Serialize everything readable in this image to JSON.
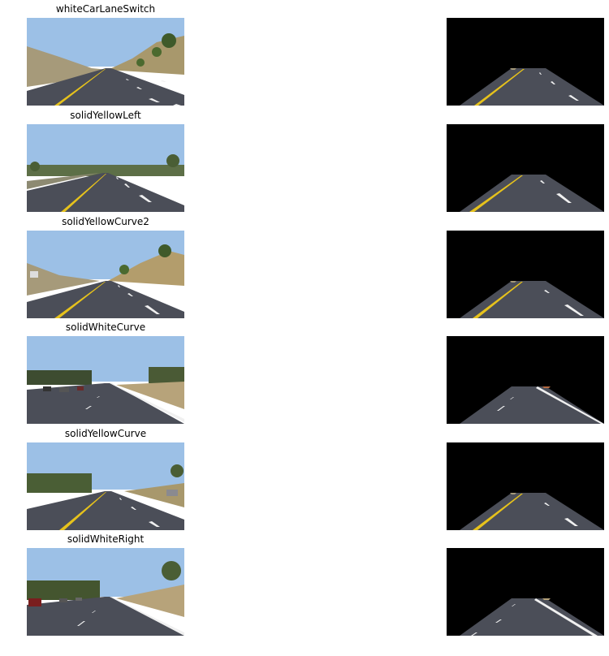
{
  "panels": [
    {
      "title": "whiteCarLaneSwitch",
      "yellow_line": "left",
      "white_dashes": "right",
      "scene": "grassy-hill-right"
    },
    {
      "title": "solidYellowLeft",
      "yellow_line": "left",
      "white_dashes": "right",
      "scene": "open-road-trees"
    },
    {
      "title": "solidYellowCurve2",
      "yellow_line": "left",
      "white_dashes": "right",
      "scene": "hills-both-sides"
    },
    {
      "title": "solidWhiteCurve",
      "yellow_line": "none",
      "white_dashes": "left",
      "scene": "traffic-left-trees-right"
    },
    {
      "title": "solidYellowCurve",
      "yellow_line": "left",
      "white_dashes": "right",
      "scene": "trees-left-car-right"
    },
    {
      "title": "solidWhiteRight",
      "yellow_line": "none",
      "white_dashes": "left",
      "scene": "traffic-left-dry-grass-right"
    }
  ],
  "colors": {
    "sky": "#9cc0e6",
    "road": "#4b4e58",
    "yellow_line": "#e6c21c",
    "white_line": "#f0f0f0",
    "masked_background": "#000000"
  }
}
